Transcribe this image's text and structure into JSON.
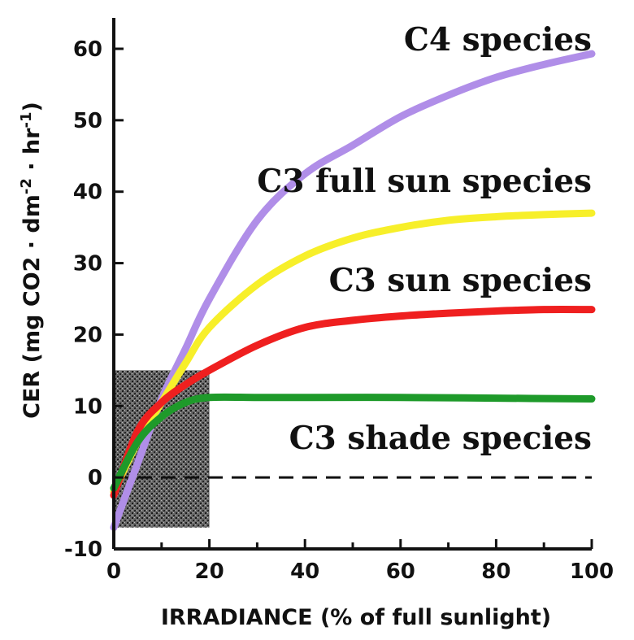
{
  "chart_data": {
    "type": "line",
    "xlabel": "IRRADIANCE  (% of full sunlight)",
    "ylabel": "CER  (mg CO2 · dm",
    "ylabel_sup1": "-2",
    "ylabel_mid": " · hr",
    "ylabel_sup2": "-1",
    "ylabel_end": ")",
    "xlim": [
      0,
      100
    ],
    "ylim": [
      -10,
      63
    ],
    "x_ticks": [
      0,
      20,
      40,
      60,
      80,
      100
    ],
    "x_tick_labels": [
      "0",
      "20",
      "40",
      "60",
      "80",
      "100"
    ],
    "y_ticks": [
      -10,
      0,
      10,
      20,
      30,
      40,
      50,
      60
    ],
    "y_tick_labels": [
      "-10",
      "0",
      "10",
      "20",
      "30",
      "40",
      "50",
      "60"
    ],
    "grid": false,
    "shaded_region": {
      "x": [
        0,
        20
      ],
      "y": [
        -7,
        15
      ]
    },
    "reference_line": {
      "y": 0,
      "style": "dashed"
    },
    "series": [
      {
        "name": "C4 species",
        "color": "#b08ee8",
        "x": [
          0,
          5,
          10,
          15,
          20,
          30,
          40,
          50,
          60,
          70,
          80,
          90,
          100
        ],
        "y": [
          -7,
          2,
          11,
          18,
          25,
          36,
          42.5,
          46.5,
          50.5,
          53.5,
          56,
          57.8,
          59.3
        ]
      },
      {
        "name": "C3 full sun species",
        "color": "#f7ef2a",
        "x": [
          0,
          5,
          10,
          15,
          20,
          30,
          40,
          50,
          60,
          70,
          80,
          90,
          100
        ],
        "y": [
          -2,
          5,
          10.5,
          16,
          21,
          27,
          31,
          33.5,
          35,
          36,
          36.5,
          36.8,
          37
        ]
      },
      {
        "name": "C3 sun species",
        "color": "#ef1f1f",
        "x": [
          0,
          5,
          10,
          15,
          20,
          30,
          40,
          50,
          60,
          70,
          80,
          90,
          100
        ],
        "y": [
          -2.5,
          6.5,
          10.5,
          13,
          15,
          18.5,
          21,
          22,
          22.6,
          23,
          23.3,
          23.5,
          23.5
        ]
      },
      {
        "name": "C3 shade species",
        "color": "#1e9a2a",
        "x": [
          0,
          5,
          10,
          15,
          20,
          30,
          40,
          60,
          80,
          100
        ],
        "y": [
          -1.5,
          5,
          8.5,
          10.5,
          11.2,
          11.2,
          11.2,
          11.2,
          11.1,
          11
        ]
      }
    ]
  }
}
